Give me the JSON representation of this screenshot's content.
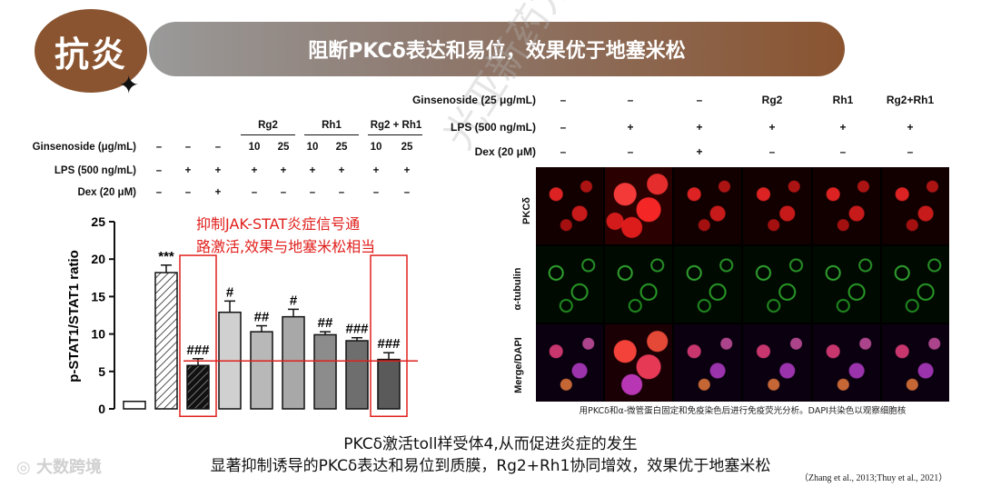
{
  "header": {
    "badge": "抗炎",
    "sparkle": "✦",
    "banner": "阻断PKCδ表达和易位，效果优于地塞米松"
  },
  "left_table": {
    "groups": [
      "Rg2",
      "Rh1",
      "Rg2 + Rh1"
    ],
    "rows": [
      {
        "label": "Ginsenoside (μg/mL)",
        "cells": [
          "–",
          "–",
          "–",
          "10",
          "25",
          "10",
          "25",
          "10",
          "25"
        ]
      },
      {
        "label": "LPS (500  ng/mL)",
        "cells": [
          "–",
          "+",
          "+",
          "+",
          "+",
          "+",
          "+",
          "+",
          "+"
        ]
      },
      {
        "label": "Dex (20 μM)",
        "cells": [
          "–",
          "–",
          "+",
          "–",
          "–",
          "–",
          "–",
          "–",
          "–"
        ]
      }
    ]
  },
  "callout": {
    "line1": "抑制JAK-STAT炎症信号通",
    "line2": "路激活,效果与地塞米松相当"
  },
  "chart_data": {
    "type": "bar",
    "ylabel": "p-STAT1/STAT1 ratio",
    "ylim": [
      0,
      25
    ],
    "yticks": [
      "0",
      "5",
      "10",
      "15",
      "20",
      "25"
    ],
    "values": [
      1.0,
      18.2,
      5.8,
      12.9,
      10.3,
      12.3,
      9.9,
      9.1,
      6.6
    ],
    "errors": [
      0,
      1.0,
      0.9,
      1.5,
      0.8,
      1.0,
      0.4,
      0.4,
      0.9
    ],
    "annotations": [
      "",
      "***",
      "###",
      "#",
      "##",
      "#",
      "##",
      "###",
      "###"
    ],
    "fills": [
      "#ffffff",
      "hatch-light",
      "hatch-dark",
      "#d0d0d0",
      "#b8b8b8",
      "#a8a8a8",
      "#8c8c8c",
      "#6e6e6e",
      "#5a5a5a"
    ],
    "highlight_bars": [
      2,
      8
    ],
    "reference_line_y": 6.4,
    "accent_color": "#e0201d"
  },
  "right_table": {
    "rows": [
      {
        "label": "Ginsenoside (25 μg/mL)",
        "cells": [
          "–",
          "–",
          "–",
          "Rg2",
          "Rh1",
          "Rg2+Rh1"
        ]
      },
      {
        "label": "LPS (500 ng/mL)",
        "cells": [
          "–",
          "+",
          "+",
          "+",
          "+",
          "+"
        ]
      },
      {
        "label": "Dex (20 μM)",
        "cells": [
          "–",
          "–",
          "+",
          "–",
          "–",
          "–"
        ]
      }
    ]
  },
  "image_panel": {
    "row_labels": [
      "PKCδ",
      "α-tubulin",
      "Merge/DAPI"
    ],
    "caption": "用PKCδ和α-微管蛋白固定和免疫染色后进行免疫荧光分析。DAPI共染色以观察细胞核"
  },
  "footer": {
    "line1": "PKCδ激活toll样受体4,从而促进炎症的发生",
    "line2": "显著抑制诱导的PKCδ表达和易位到质膜，Rg2+Rh1协同增效，效果优于地塞米松",
    "reference": "（Zhang et al., 2013;Thuy et al., 2021）",
    "watermark": "大数跨境",
    "watermark2": "光亚新药方"
  }
}
